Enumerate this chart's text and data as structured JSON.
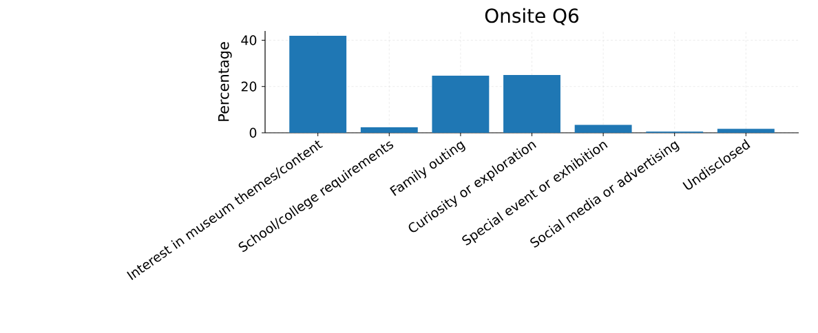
{
  "chart_data": {
    "type": "bar",
    "title": "Onsite Q6",
    "ylabel": "Percentage",
    "categories": [
      "Interest in museum themes/content",
      "School/college requirements",
      "Family outing",
      "Curiosity or exploration",
      "Special event or exhibition",
      "Social media or advertising",
      "Undisclosed"
    ],
    "values": [
      41.9,
      2.4,
      24.7,
      25.0,
      3.4,
      0.5,
      1.7
    ],
    "color": "#1f77b4",
    "ylim": [
      0,
      44
    ],
    "yticks": [
      0,
      20,
      40
    ],
    "grid": true
  }
}
